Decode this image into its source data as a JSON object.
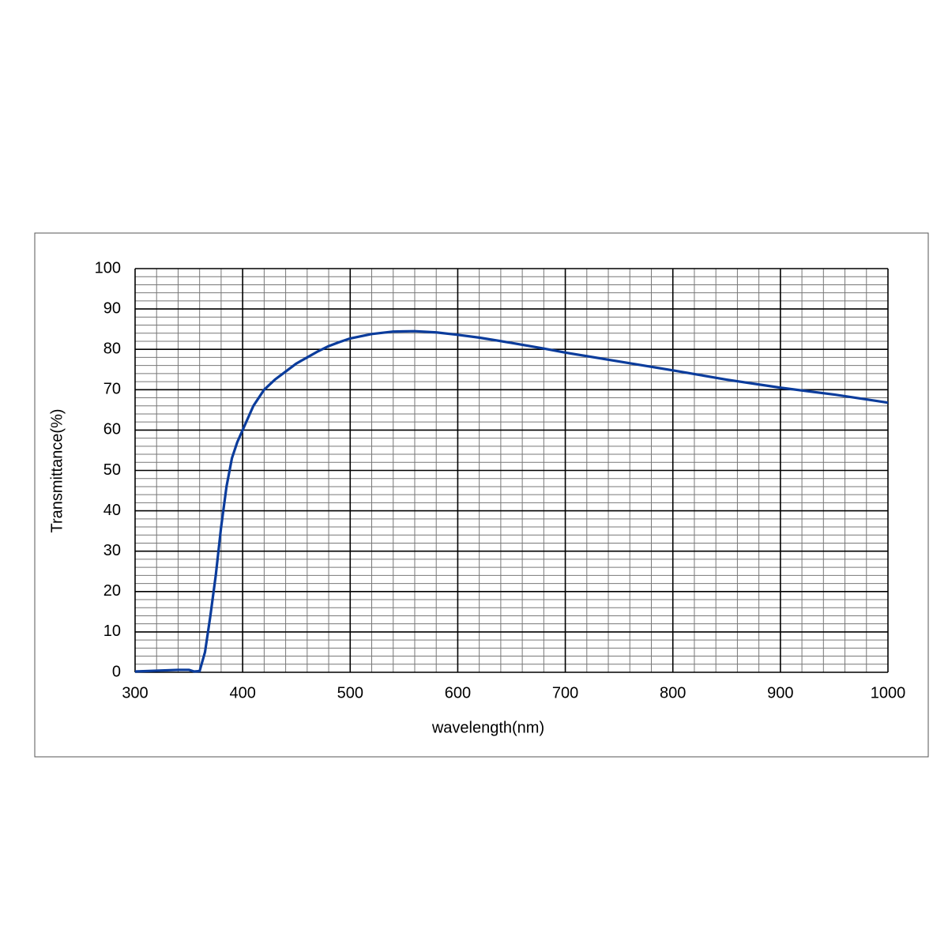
{
  "chart_data": {
    "type": "line",
    "x_label": "wavelength(nm)",
    "y_label": "Transmittance(%)",
    "x": [
      300,
      320,
      340,
      350,
      355,
      360,
      365,
      370,
      375,
      380,
      385,
      390,
      395,
      400,
      410,
      420,
      430,
      440,
      450,
      460,
      470,
      480,
      490,
      500,
      520,
      540,
      560,
      580,
      600,
      620,
      650,
      680,
      700,
      750,
      800,
      850,
      900,
      950,
      1000
    ],
    "series": [
      {
        "name": "Transmittance",
        "color": "#0b3c9c",
        "values": [
          0.2,
          0.4,
          0.6,
          0.6,
          0.2,
          0.3,
          5,
          14,
          24,
          36,
          46,
          53,
          57,
          60,
          66,
          70,
          72.5,
          74.5,
          76.5,
          78,
          79.5,
          80.8,
          81.8,
          82.7,
          83.8,
          84.4,
          84.5,
          84.2,
          83.6,
          82.9,
          81.6,
          80.2,
          79.2,
          77,
          74.8,
          72.5,
          70.5,
          68.8,
          66.8
        ]
      }
    ],
    "xlim": [
      300,
      1000
    ],
    "ylim": [
      0,
      100
    ],
    "xticks": [
      300,
      400,
      500,
      600,
      700,
      800,
      900,
      1000
    ],
    "yticks": [
      0,
      10,
      20,
      30,
      40,
      50,
      60,
      70,
      80,
      90,
      100
    ],
    "grid": true,
    "minor_grid_divisions": 5
  }
}
